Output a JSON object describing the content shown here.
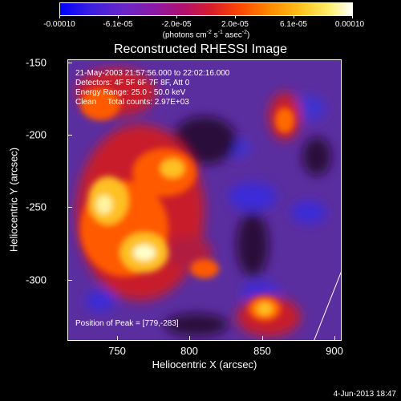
{
  "colorbar": {
    "tick_labels": [
      "-0.00010",
      "-6.1e-05",
      "-2.0e-05",
      "2.0e-05",
      "6.1e-05",
      "0.00010"
    ],
    "units_main": "(photons cm",
    "units_sup1": "-2",
    "units_mid": " s",
    "units_sup2": "-1",
    "units_mid2": " asec",
    "units_sup3": "-2",
    "units_end": ")"
  },
  "title": "Reconstructed RHESSI Image",
  "info": {
    "line1": "21-May-2003 21:57:56.000 to 22:02:16.000",
    "line2": "Detectors: 4F 5F 6F 7F 8F, Att 0",
    "line3": "Energy Range: 25.0 - 50.0 keV",
    "line4": "Clean     Total counts: 2.97E+03"
  },
  "peak": "Position of Peak = [779,-283]",
  "axes": {
    "x_label": "Heliocentric X (arcsec)",
    "y_label": "Heliocentric Y (arcsec)",
    "x_ticks": [
      "750",
      "800",
      "850",
      "900"
    ],
    "y_ticks": [
      "-150",
      "-200",
      "-250",
      "-300"
    ]
  },
  "timestamp": "4-Jun-2013 18:47"
}
